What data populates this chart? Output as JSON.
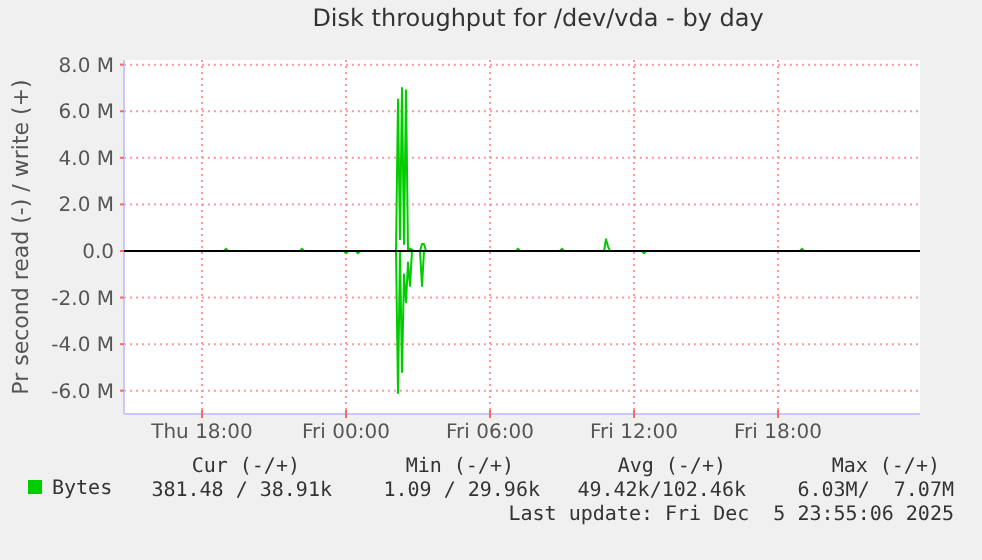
{
  "chart_data": {
    "type": "line",
    "title": "Disk throughput for /dev/vda - by day",
    "ylabel": "Pr second read (-) / write (+)",
    "xlim": [
      "2025-12-04T14:45",
      "2025-12-05T23:55"
    ],
    "xticks": [
      {
        "value": "2025-12-04T18:00",
        "label": "Thu 18:00"
      },
      {
        "value": "2025-12-05T00:00",
        "label": "Fri 00:00"
      },
      {
        "value": "2025-12-05T06:00",
        "label": "Fri 06:00"
      },
      {
        "value": "2025-12-05T12:00",
        "label": "Fri 12:00"
      },
      {
        "value": "2025-12-05T18:00",
        "label": "Fri 18:00"
      }
    ],
    "ylim": [
      -7000000,
      8200000
    ],
    "yticks": [
      {
        "value": -6000000,
        "label": "-6.0 M"
      },
      {
        "value": -4000000,
        "label": "-4.0 M"
      },
      {
        "value": -2000000,
        "label": "-2.0 M"
      },
      {
        "value": 0,
        "label": "0.0"
      },
      {
        "value": 2000000,
        "label": "2.0 M"
      },
      {
        "value": 4000000,
        "label": "4.0 M"
      },
      {
        "value": 6000000,
        "label": "6.0 M"
      },
      {
        "value": 8000000,
        "label": "8.0 M"
      }
    ],
    "grid": true,
    "legend": "bottom",
    "line_style": "solid",
    "marker": "none",
    "ref_lines": [
      {
        "axis": "y",
        "value": 0,
        "color": "#000000"
      }
    ],
    "series": [
      {
        "name": "Bytes",
        "color": "#00cc00",
        "x": [
          "2025-12-04T14:45",
          "2025-12-04T18:55",
          "2025-12-04T19:00",
          "2025-12-04T19:05",
          "2025-12-04T22:05",
          "2025-12-04T22:10",
          "2025-12-04T22:15",
          "2025-12-05T02:05",
          "2025-12-05T02:10",
          "2025-12-05T02:15",
          "2025-12-05T02:20",
          "2025-12-05T02:25",
          "2025-12-05T02:30",
          "2025-12-05T02:35",
          "2025-12-05T02:40",
          "2025-12-05T02:50",
          "2025-12-05T03:05",
          "2025-12-05T03:10",
          "2025-12-05T03:15",
          "2025-12-05T03:20",
          "2025-12-05T07:05",
          "2025-12-05T07:10",
          "2025-12-05T07:15",
          "2025-12-05T08:55",
          "2025-12-05T09:00",
          "2025-12-05T09:05",
          "2025-12-05T10:45",
          "2025-12-05T10:50",
          "2025-12-05T10:55",
          "2025-12-05T11:00",
          "2025-12-05T18:55",
          "2025-12-05T19:00",
          "2025-12-05T19:05",
          "2025-12-05T23:55"
        ],
        "values": [
          0,
          0,
          100000,
          0,
          0,
          100000,
          0,
          0,
          6500000,
          500000,
          7000000,
          300000,
          6900000,
          0,
          100000,
          0,
          0,
          300000,
          300000,
          0,
          0,
          100000,
          0,
          0,
          100000,
          0,
          0,
          500000,
          200000,
          0,
          0,
          100000,
          0,
          0
        ]
      },
      {
        "color": "#00cc00",
        "x": [
          "2025-12-04T14:45",
          "2025-12-04T23:55",
          "2025-12-05T00:00",
          "2025-12-05T00:05",
          "2025-12-05T00:25",
          "2025-12-05T00:30",
          "2025-12-05T00:35",
          "2025-12-05T02:05",
          "2025-12-05T02:10",
          "2025-12-05T02:15",
          "2025-12-05T02:20",
          "2025-12-05T02:25",
          "2025-12-05T02:30",
          "2025-12-05T02:35",
          "2025-12-05T02:40",
          "2025-12-05T02:45",
          "2025-12-05T03:05",
          "2025-12-05T03:10",
          "2025-12-05T03:15",
          "2025-12-05T12:20",
          "2025-12-05T12:25",
          "2025-12-05T12:30",
          "2025-12-05T23:55"
        ],
        "values": [
          0,
          0,
          -100000,
          0,
          0,
          -100000,
          0,
          0,
          -6100000,
          0,
          -5200000,
          -1000000,
          -2200000,
          -500000,
          -1500000,
          0,
          0,
          -1500000,
          0,
          0,
          -100000,
          0,
          0
        ]
      }
    ],
    "annotations": [
      "Cur (-/+)",
      "Min (-/+)",
      "Avg (-/+)",
      "Max (-/+)",
      "381.48 / 38.91k",
      "1.09 / 29.96k",
      "49.42k/102.46k",
      "6.03M/  7.07M",
      "Last update: Fri Dec  5 23:55:06 2025"
    ]
  }
}
